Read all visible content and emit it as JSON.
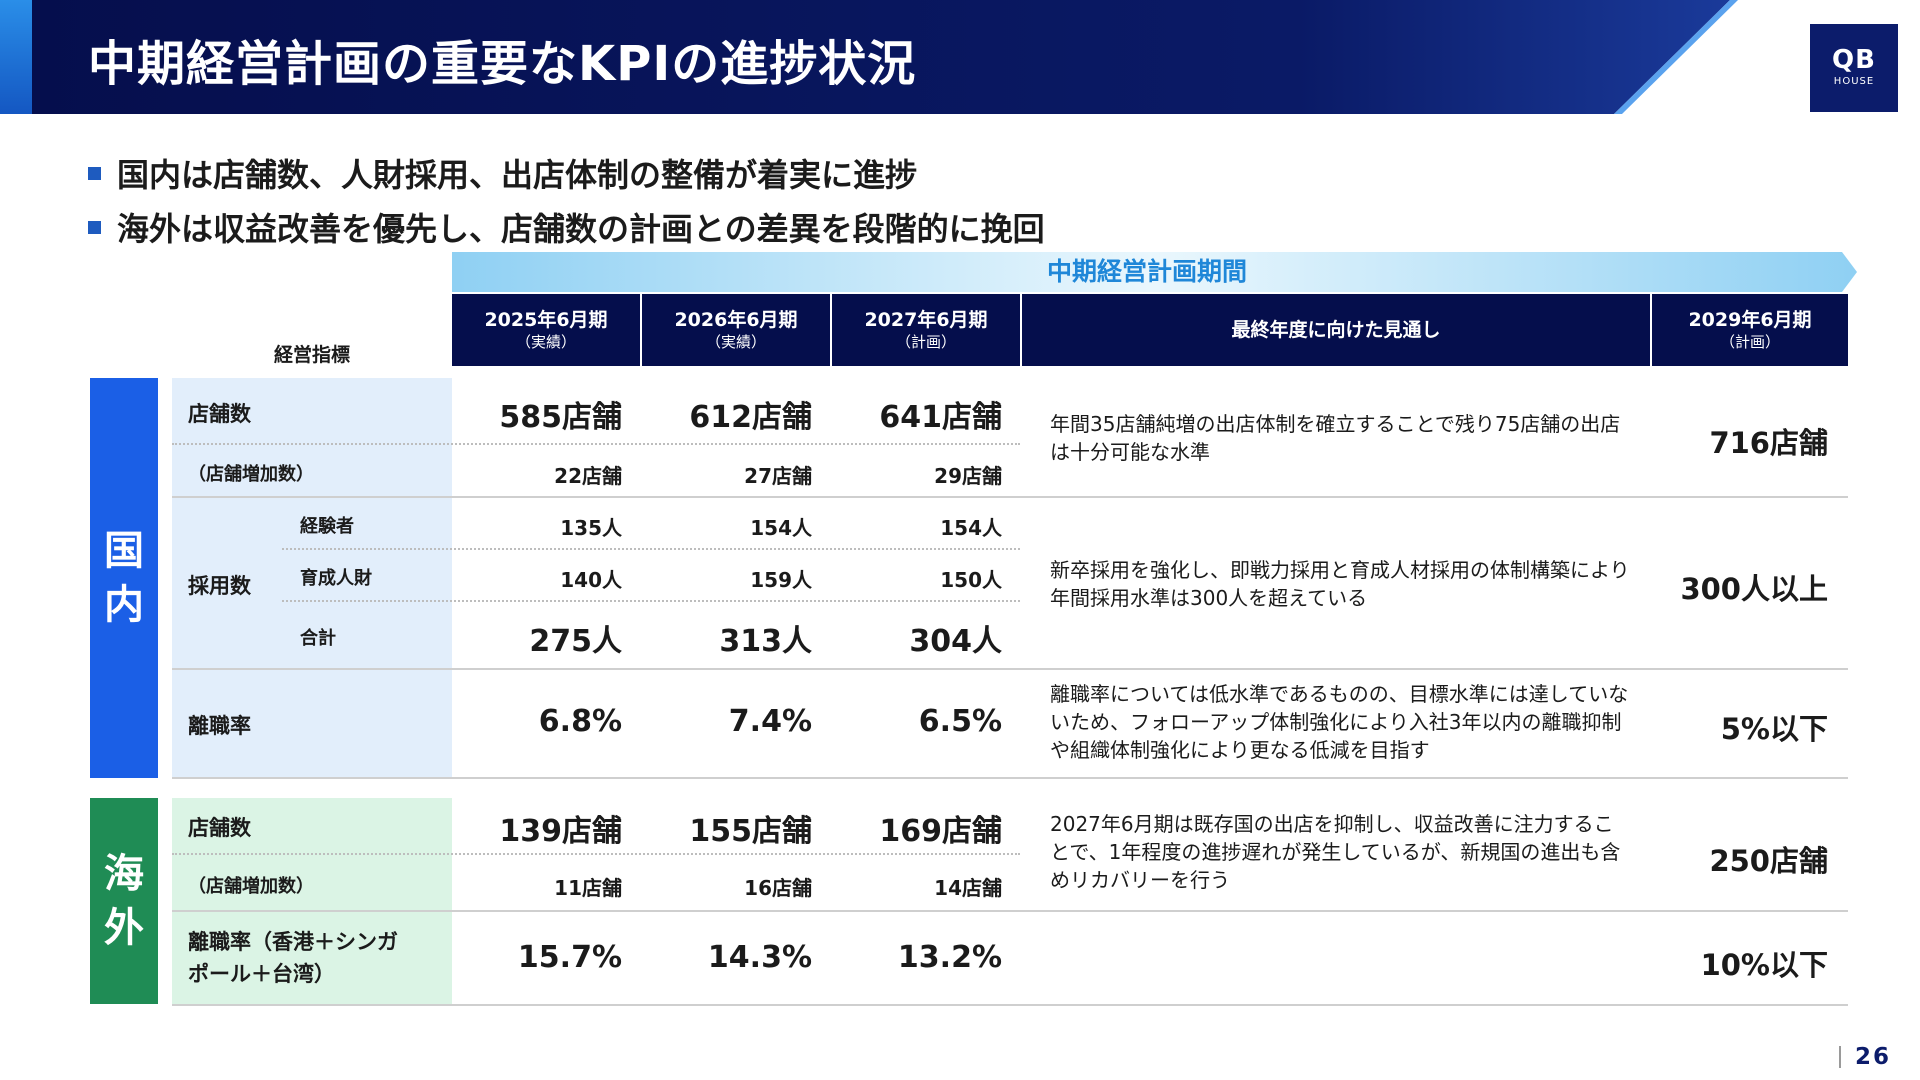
{
  "header": {
    "title": "中期経営計画の重要なKPIの進捗状況"
  },
  "logo": {
    "main": "QB",
    "sub": "HOUSE"
  },
  "bullets": [
    "国内は店舗数、人財採用、出店体制の整備が着実に進捗",
    "海外は収益改善を優先し、店舗数の計画との差異を段階的に挽回"
  ],
  "table": {
    "period_banner": "中期経営計画期間",
    "kpi_header": "経営指標",
    "columns": [
      {
        "main": "2025年6月期",
        "sub": "（実績）"
      },
      {
        "main": "2026年6月期",
        "sub": "（実績）"
      },
      {
        "main": "2027年6月期",
        "sub": "（計画）"
      },
      {
        "main": "最終年度に向けた見通し",
        "sub": ""
      },
      {
        "main": "2029年6月期",
        "sub": "（計画）"
      }
    ],
    "domestic": {
      "region": [
        "国",
        "内"
      ],
      "stores": {
        "label": "店舗数",
        "values": [
          "585店舗",
          "612店舗",
          "641店舗"
        ],
        "increase_label": "（店舗増加数）",
        "increase_values": [
          "22店舗",
          "27店舗",
          "29店舗"
        ],
        "note": "年間35店舗純増の出店体制を確立することで残り75店舗の出店は十分可能な水準",
        "target": "716店舗"
      },
      "hiring": {
        "label": "採用数",
        "experienced_label": "経験者",
        "experienced_values": [
          "135人",
          "154人",
          "154人"
        ],
        "trainee_label": "育成人財",
        "trainee_values": [
          "140人",
          "159人",
          "150人"
        ],
        "total_label": "合計",
        "total_values": [
          "275人",
          "313人",
          "304人"
        ],
        "note": "新卒採用を強化し、即戦力採用と育成人材採用の体制構築により年間採用水準は300人を超えている",
        "target": "300人以上"
      },
      "turnover": {
        "label": "離職率",
        "values": [
          "6.8%",
          "7.4%",
          "6.5%"
        ],
        "note": "離職率については低水準であるものの、目標水準には達していないため、フォローアップ体制強化により入社3年以内の離職抑制や組織体制強化により更なる低減を目指す",
        "target": "5%以下"
      }
    },
    "overseas": {
      "region": [
        "海",
        "外"
      ],
      "stores": {
        "label": "店舗数",
        "values": [
          "139店舗",
          "155店舗",
          "169店舗"
        ],
        "increase_label": "（店舗増加数）",
        "increase_values": [
          "11店舗",
          "16店舗",
          "14店舗"
        ],
        "note": "2027年6月期は既存国の出店を抑制し、収益改善に注力することで、1年程度の進捗遅れが発生しているが、新規国の進出も含めリカバリーを行う",
        "target": "250店舗"
      },
      "turnover": {
        "label_line1": "離職率（香港＋シンガ",
        "label_line2": "ポール＋台湾）",
        "values": [
          "15.7%",
          "14.3%",
          "13.2%"
        ],
        "target": "10%以下"
      }
    }
  },
  "footer": {
    "page_number": "26"
  },
  "colors": {
    "header_navy": "#050e4c",
    "domestic_blue": "#1b5fe6",
    "overseas_green": "#1f8c55",
    "banner_text": "#1f87d8"
  }
}
